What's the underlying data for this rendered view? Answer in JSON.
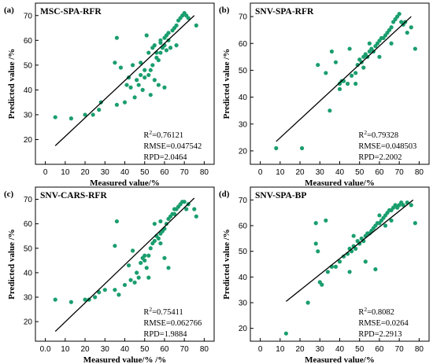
{
  "colors": {
    "point": "#1a9e6e",
    "line": "#000000"
  },
  "chart_data": [
    {
      "type": "scatter",
      "panel_label": "(a)",
      "title": "MSC-SPA-RFR",
      "xlabel": "Measured value/%",
      "ylabel": "Predicted value /%",
      "xlim": [
        -5,
        85
      ],
      "ylim": [
        10,
        75
      ],
      "xticks": [
        0,
        10,
        20,
        30,
        40,
        50,
        60,
        70,
        80
      ],
      "xtick_labels": [
        "0",
        "10",
        "20",
        "30",
        "40",
        "50",
        "60",
        "70",
        "80"
      ],
      "yticks": [
        20,
        30,
        40,
        50,
        60,
        70
      ],
      "ytick_labels": [
        "20",
        "30",
        "40",
        "50",
        "60",
        "70"
      ],
      "fit_line": [
        [
          5,
          17.5
        ],
        [
          75,
          70
        ]
      ],
      "stats": {
        "r2_prefix": "R",
        "r2_sup": "2",
        "r2_value": "=0.76121",
        "rmse": "RMSE=0.047542",
        "rpd": "RPD=2.0464"
      },
      "points": [
        [
          5,
          29
        ],
        [
          13,
          28.5
        ],
        [
          20,
          30
        ],
        [
          24,
          30
        ],
        [
          27,
          32
        ],
        [
          28,
          35
        ],
        [
          36,
          61
        ],
        [
          36,
          34
        ],
        [
          40,
          35
        ],
        [
          41,
          42
        ],
        [
          42,
          45
        ],
        [
          43,
          41
        ],
        [
          45,
          37
        ],
        [
          46,
          44
        ],
        [
          47,
          42
        ],
        [
          48,
          46
        ],
        [
          48,
          51
        ],
        [
          49,
          40
        ],
        [
          50,
          48
        ],
        [
          50,
          45
        ],
        [
          51,
          62
        ],
        [
          52,
          46
        ],
        [
          53,
          48
        ],
        [
          53,
          38
        ],
        [
          54,
          50
        ],
        [
          55,
          58
        ],
        [
          56,
          53
        ],
        [
          56,
          55
        ],
        [
          57,
          52
        ],
        [
          58,
          55
        ],
        [
          58,
          60
        ],
        [
          59,
          57
        ],
        [
          60,
          58
        ],
        [
          60,
          61
        ],
        [
          61,
          56
        ],
        [
          61,
          62
        ],
        [
          62,
          63
        ],
        [
          62,
          60
        ],
        [
          63,
          57
        ],
        [
          64,
          64
        ],
        [
          65,
          65
        ],
        [
          66,
          66
        ],
        [
          67,
          68
        ],
        [
          68,
          69
        ],
        [
          69,
          70
        ],
        [
          70,
          71
        ],
        [
          71,
          70
        ],
        [
          72,
          69
        ],
        [
          60,
          41
        ],
        [
          57,
          42
        ],
        [
          55,
          44
        ],
        [
          38,
          49
        ],
        [
          35,
          51
        ],
        [
          44,
          50
        ],
        [
          52,
          55
        ],
        [
          54,
          57
        ],
        [
          58,
          59
        ],
        [
          66,
          58
        ],
        [
          76,
          66
        ]
      ]
    },
    {
      "type": "scatter",
      "panel_label": "(b)",
      "title": "SNV-SPA-RFR",
      "xlabel": "Measured value/%",
      "ylabel": "Predicted value /%",
      "xlim": [
        -5,
        85
      ],
      "ylim": [
        15,
        75
      ],
      "xticks": [
        0,
        10,
        20,
        30,
        40,
        50,
        60,
        70,
        80
      ],
      "xtick_labels": [
        "0",
        "10",
        "20",
        "30",
        "40",
        "50",
        "60",
        "70",
        "80"
      ],
      "yticks": [
        20,
        30,
        40,
        50,
        60,
        70
      ],
      "ytick_labels": [
        "20",
        "30",
        "40",
        "50",
        "60",
        "70"
      ],
      "fit_line": [
        [
          8,
          23.5
        ],
        [
          76,
          70
        ]
      ],
      "stats": {
        "r2_prefix": "R",
        "r2_sup": "2",
        "r2_value": "=0.79328",
        "rmse": "RMSE=0.048503",
        "rpd": "RPD=2.2002"
      },
      "points": [
        [
          8,
          21
        ],
        [
          21,
          21
        ],
        [
          29,
          52
        ],
        [
          33,
          49
        ],
        [
          35,
          35
        ],
        [
          36,
          57
        ],
        [
          38,
          53
        ],
        [
          40,
          45
        ],
        [
          41,
          46
        ],
        [
          42,
          46
        ],
        [
          44,
          45
        ],
        [
          46,
          48
        ],
        [
          48,
          49
        ],
        [
          49,
          52
        ],
        [
          50,
          54
        ],
        [
          51,
          53
        ],
        [
          52,
          55
        ],
        [
          53,
          56
        ],
        [
          54,
          55
        ],
        [
          55,
          57
        ],
        [
          56,
          58
        ],
        [
          57,
          57
        ],
        [
          58,
          59
        ],
        [
          59,
          60
        ],
        [
          60,
          61
        ],
        [
          61,
          62
        ],
        [
          62,
          62
        ],
        [
          63,
          63
        ],
        [
          64,
          64
        ],
        [
          65,
          65
        ],
        [
          66,
          66
        ],
        [
          67,
          68
        ],
        [
          68,
          69
        ],
        [
          69,
          70
        ],
        [
          70,
          71
        ],
        [
          71,
          68
        ],
        [
          72,
          67
        ],
        [
          73,
          68
        ],
        [
          74,
          64
        ],
        [
          76,
          66
        ],
        [
          78,
          58
        ],
        [
          45,
          58
        ],
        [
          48,
          45
        ],
        [
          55,
          60
        ],
        [
          60,
          55
        ],
        [
          66,
          60
        ],
        [
          52,
          51
        ],
        [
          40,
          43
        ]
      ]
    },
    {
      "type": "scatter",
      "panel_label": "(c)",
      "title": "SNV-CARS-RFR",
      "xlabel": "Measured value/% /%",
      "ylabel": "Predicted value /%",
      "xlim": [
        -5,
        85
      ],
      "ylim": [
        12,
        75
      ],
      "xticks": [
        0,
        10,
        20,
        30,
        40,
        50,
        60,
        70,
        80
      ],
      "xtick_labels": [
        "0.0",
        "10",
        "20",
        "30",
        "40",
        "50",
        "60",
        "70",
        "80"
      ],
      "yticks": [
        20,
        30,
        40,
        50,
        60,
        70
      ],
      "ytick_labels": [
        "20",
        "30",
        "40",
        "50",
        "60",
        "70"
      ],
      "fit_line": [
        [
          5,
          16
        ],
        [
          75,
          70.5
        ]
      ],
      "stats": {
        "r2_prefix": "R",
        "r2_sup": "2",
        "r2_value": "=0.75411",
        "rmse": "RMSE=0.062766",
        "rpd": "RPD=1.9884"
      },
      "points": [
        [
          5,
          29
        ],
        [
          13,
          28
        ],
        [
          20,
          29
        ],
        [
          22,
          29
        ],
        [
          25,
          30
        ],
        [
          27,
          32
        ],
        [
          30,
          33
        ],
        [
          35,
          33
        ],
        [
          36,
          61
        ],
        [
          37,
          31
        ],
        [
          40,
          35
        ],
        [
          42,
          43
        ],
        [
          43,
          37
        ],
        [
          45,
          36
        ],
        [
          46,
          40
        ],
        [
          47,
          38
        ],
        [
          48,
          44
        ],
        [
          49,
          46
        ],
        [
          50,
          45
        ],
        [
          50,
          47
        ],
        [
          51,
          42
        ],
        [
          52,
          47
        ],
        [
          53,
          50
        ],
        [
          54,
          52
        ],
        [
          55,
          53
        ],
        [
          56,
          55
        ],
        [
          57,
          54
        ],
        [
          58,
          56
        ],
        [
          59,
          57
        ],
        [
          60,
          58
        ],
        [
          61,
          60
        ],
        [
          62,
          62
        ],
        [
          63,
          63
        ],
        [
          64,
          64
        ],
        [
          65,
          64
        ],
        [
          66,
          66
        ],
        [
          67,
          67
        ],
        [
          68,
          68
        ],
        [
          69,
          69
        ],
        [
          70,
          69
        ],
        [
          71,
          66
        ],
        [
          72,
          68
        ],
        [
          75,
          66
        ],
        [
          76,
          63
        ],
        [
          60,
          46
        ],
        [
          58,
          52
        ],
        [
          62,
          42
        ],
        [
          52,
          38
        ],
        [
          35,
          51
        ],
        [
          44,
          49
        ],
        [
          55,
          60
        ],
        [
          58,
          61
        ],
        [
          65,
          66
        ]
      ]
    },
    {
      "type": "scatter",
      "panel_label": "(d)",
      "title": "SNV-SPA-BP",
      "xlabel": "Measured value/%",
      "ylabel": "Predicted value /%",
      "xlim": [
        -5,
        85
      ],
      "ylim": [
        15,
        75
      ],
      "xticks": [
        0,
        10,
        20,
        30,
        40,
        50,
        60,
        70,
        80
      ],
      "xtick_labels": [
        "0",
        "10",
        "20",
        "30",
        "40",
        "50",
        "60",
        "70",
        "80"
      ],
      "yticks": [
        20,
        30,
        40,
        50,
        60,
        70
      ],
      "ytick_labels": [
        "20",
        "30",
        "40",
        "50",
        "60",
        "70"
      ],
      "fit_line": [
        [
          13,
          30.5
        ],
        [
          77,
          70
        ]
      ],
      "stats": {
        "r2_prefix": "R",
        "r2_sup": "2",
        "r2_value": "=0.8082",
        "rmse": "RMSE=0.0264",
        "rpd": "RPD=2.2913"
      },
      "points": [
        [
          13,
          18
        ],
        [
          24,
          30
        ],
        [
          28,
          61
        ],
        [
          28,
          53
        ],
        [
          29,
          50
        ],
        [
          30,
          38
        ],
        [
          31,
          37
        ],
        [
          33,
          62
        ],
        [
          34,
          42
        ],
        [
          36,
          44
        ],
        [
          38,
          44
        ],
        [
          40,
          46
        ],
        [
          42,
          48
        ],
        [
          44,
          49
        ],
        [
          45,
          51
        ],
        [
          46,
          50
        ],
        [
          47,
          52
        ],
        [
          48,
          51
        ],
        [
          49,
          54
        ],
        [
          50,
          53
        ],
        [
          51,
          55
        ],
        [
          52,
          54
        ],
        [
          53,
          56
        ],
        [
          54,
          57
        ],
        [
          55,
          57
        ],
        [
          56,
          58
        ],
        [
          57,
          59
        ],
        [
          58,
          60
        ],
        [
          59,
          61
        ],
        [
          60,
          61
        ],
        [
          61,
          62
        ],
        [
          62,
          63
        ],
        [
          63,
          64
        ],
        [
          64,
          65
        ],
        [
          65,
          66
        ],
        [
          66,
          66
        ],
        [
          67,
          67
        ],
        [
          68,
          68
        ],
        [
          69,
          67
        ],
        [
          70,
          68
        ],
        [
          71,
          69
        ],
        [
          72,
          68
        ],
        [
          74,
          69
        ],
        [
          76,
          68
        ],
        [
          78,
          61
        ],
        [
          58,
          43
        ],
        [
          53,
          46
        ],
        [
          47,
          56
        ],
        [
          45,
          42
        ],
        [
          60,
          64
        ],
        [
          63,
          60
        ],
        [
          66,
          62
        ]
      ]
    }
  ]
}
